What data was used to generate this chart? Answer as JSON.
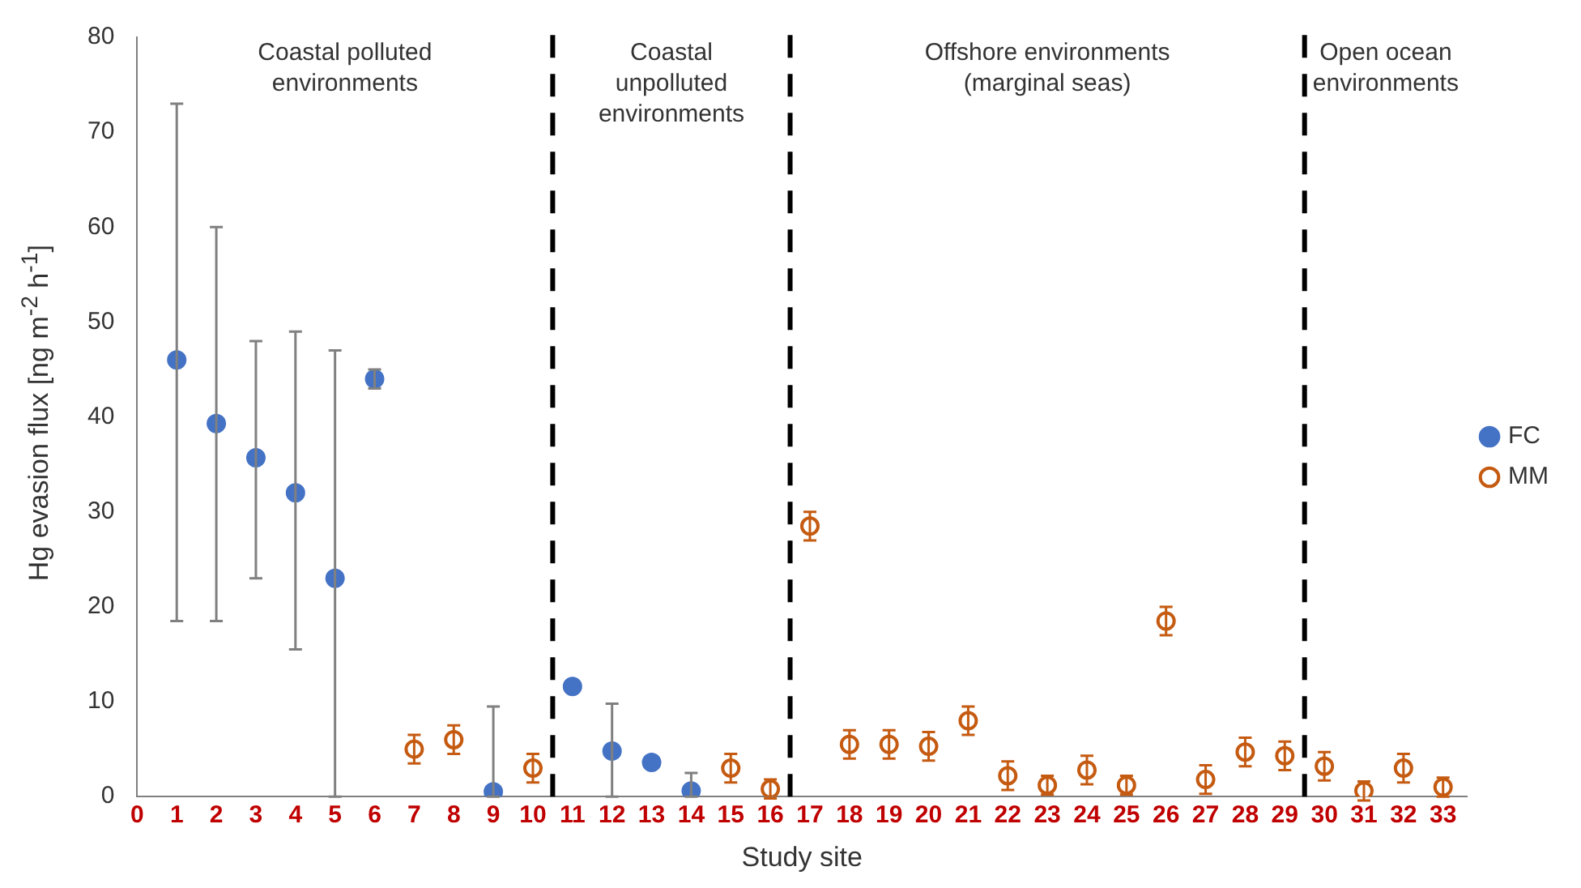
{
  "chart_data": {
    "type": "scatter",
    "xlabel": "Study site",
    "ylabel": "Hg evasion flux [ng m$^{-2}$ h$^{-1}$]",
    "xlim": [
      0,
      33.6
    ],
    "xticks": [
      0,
      1,
      2,
      3,
      4,
      5,
      6,
      7,
      8,
      9,
      10,
      11,
      12,
      13,
      14,
      15,
      16,
      17,
      18,
      19,
      20,
      21,
      22,
      23,
      24,
      25,
      26,
      27,
      28,
      29,
      30,
      31,
      32,
      33
    ],
    "ylim": [
      0,
      80
    ],
    "yticks": [
      0,
      10,
      20,
      30,
      40,
      50,
      60,
      70,
      80
    ],
    "grid": false,
    "legend": "right",
    "marker": "circle",
    "series": [
      {
        "name": "FC",
        "color": "#4472c4",
        "x": [
          1,
          2,
          3,
          4,
          5,
          6,
          9,
          11,
          12,
          13,
          14
        ],
        "values": [
          46,
          39.3,
          35.7,
          32,
          23,
          44,
          0.5,
          11.6,
          4.8,
          3.6,
          0.6
        ],
        "errors": [
          [
            18.5,
            73
          ],
          [
            18.5,
            60
          ],
          [
            23,
            48
          ],
          [
            15.5,
            49
          ],
          [
            0,
            47
          ],
          1,
          [
            0,
            9.5
          ],
          null,
          [
            0,
            9.8
          ],
          null,
          [
            0,
            2.5
          ]
        ]
      },
      {
        "name": "MM",
        "color": "#c55a11",
        "x": [
          7,
          8,
          10,
          15,
          16,
          17,
          18,
          19,
          20,
          21,
          22,
          23,
          24,
          25,
          26,
          27,
          28,
          29,
          30,
          31,
          32,
          33
        ],
        "values": [
          5,
          6,
          3,
          3,
          0.8,
          28.5,
          5.5,
          5.5,
          5.3,
          8,
          2.2,
          1.2,
          2.8,
          1.2,
          18.5,
          1.8,
          4.7,
          4.3,
          3.2,
          0.6,
          3,
          1
        ],
        "errors": [
          1.5,
          1.5,
          1.5,
          1.5,
          1,
          1.5,
          1.5,
          1.5,
          1.5,
          1.5,
          1.5,
          1,
          1.5,
          1,
          1.5,
          1.5,
          1.5,
          1.5,
          1.5,
          1,
          1.5,
          1
        ]
      }
    ],
    "ref_lines": [
      {
        "axis": "x",
        "value": 10.5,
        "color": "#000000",
        "line_style": "dashed"
      },
      {
        "axis": "x",
        "value": 16.5,
        "color": "#000000",
        "line_style": "dashed"
      },
      {
        "axis": "x",
        "value": 29.5,
        "color": "#000000",
        "line_style": "dashed"
      }
    ],
    "annotations": [
      "Coastal polluted\nenvironments",
      "Coastal\nunpolluted\nenvironments",
      "Offshore environments\n(marginal seas)",
      "Open ocean\nenvironments"
    ]
  }
}
